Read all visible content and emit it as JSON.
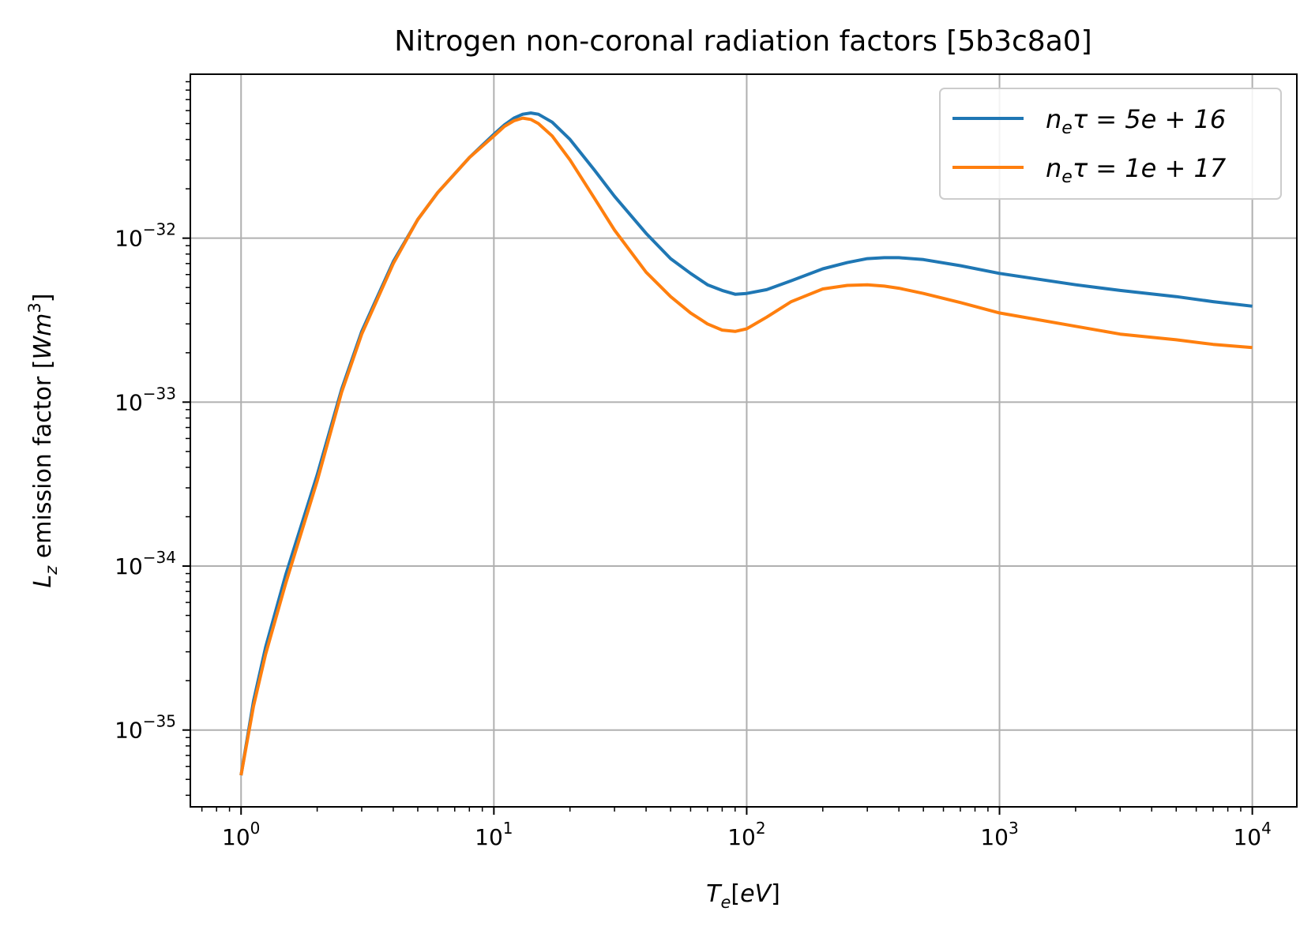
{
  "chart_data": {
    "type": "line",
    "title": "Nitrogen non-coronal radiation factors [5b3c8a0]",
    "xlabel": "T_e[eV]",
    "ylabel": "L_z emission factor [W m^3]",
    "xscale": "log",
    "yscale": "log",
    "xlim": [
      0.63,
      15000
    ],
    "ylim": [
      3.4e-36,
      1e-31
    ],
    "grid": true,
    "legend_position": "top-right",
    "x_ticks": [
      {
        "exp": "0",
        "value": 1
      },
      {
        "exp": "1",
        "value": 10
      },
      {
        "exp": "2",
        "value": 100
      },
      {
        "exp": "3",
        "value": 1000
      },
      {
        "exp": "4",
        "value": 10000
      }
    ],
    "y_ticks": [
      {
        "exp": "−32",
        "value": 1e-32
      },
      {
        "exp": "−33",
        "value": 1e-33
      },
      {
        "exp": "−34",
        "value": 1e-34
      },
      {
        "exp": "−35",
        "value": 1e-35
      }
    ],
    "series": [
      {
        "name": "n_e τ = 5e+16",
        "color": "#1f77b4",
        "x": [
          1.0,
          1.12,
          1.25,
          1.5,
          2.0,
          2.5,
          3.0,
          4.0,
          5.0,
          6.0,
          8.0,
          10.0,
          11.0,
          12.0,
          13.0,
          14.0,
          15.0,
          17.0,
          20.0,
          25.0,
          30.0,
          40.0,
          50.0,
          60.0,
          70.0,
          80.0,
          90.0,
          100.0,
          120.0,
          150.0,
          200.0,
          250.0,
          300.0,
          350.0,
          400.0,
          500.0,
          700.0,
          1000.0,
          2000.0,
          3000.0,
          5000.0,
          7000.0,
          10000.0
        ],
        "y": [
          5.3e-36,
          1.5e-35,
          3.2e-35,
          8.8e-35,
          3.6e-34,
          1.2e-33,
          2.7e-33,
          7.2e-33,
          1.3e-32,
          1.9e-32,
          3.1e-32,
          4.3e-32,
          4.9e-32,
          5.4e-32,
          5.7e-32,
          5.8e-32,
          5.7e-32,
          5.1e-32,
          4e-32,
          2.6e-32,
          1.8e-32,
          1.07e-32,
          7.5e-33,
          6.1e-33,
          5.2e-33,
          4.8e-33,
          4.55e-33,
          4.6e-33,
          4.85e-33,
          5.5e-33,
          6.5e-33,
          7.1e-33,
          7.5e-33,
          7.6e-33,
          7.6e-33,
          7.4e-33,
          6.8e-33,
          6.1e-33,
          5.2e-33,
          4.8e-33,
          4.4e-33,
          4.1e-33,
          3.85e-33
        ]
      },
      {
        "name": "n_e τ = 1e+17",
        "color": "#ff7f0e",
        "x": [
          1.0,
          1.12,
          1.25,
          1.5,
          2.0,
          2.5,
          3.0,
          4.0,
          5.0,
          6.0,
          8.0,
          10.0,
          11.0,
          12.0,
          13.0,
          14.0,
          15.0,
          17.0,
          20.0,
          25.0,
          30.0,
          40.0,
          50.0,
          60.0,
          70.0,
          80.0,
          90.0,
          100.0,
          120.0,
          150.0,
          200.0,
          250.0,
          300.0,
          350.0,
          400.0,
          500.0,
          700.0,
          1000.0,
          2000.0,
          3000.0,
          5000.0,
          7000.0,
          10000.0
        ],
        "y": [
          5.3e-36,
          1.4e-35,
          2.9e-35,
          7.8e-35,
          3.3e-34,
          1.15e-33,
          2.6e-33,
          7e-33,
          1.3e-32,
          1.9e-32,
          3.1e-32,
          4.2e-32,
          4.8e-32,
          5.2e-32,
          5.4e-32,
          5.3e-32,
          5e-32,
          4.2e-32,
          3e-32,
          1.75e-32,
          1.12e-32,
          6.2e-33,
          4.4e-33,
          3.5e-33,
          3e-33,
          2.75e-33,
          2.7e-33,
          2.8e-33,
          3.3e-33,
          4.1e-33,
          4.9e-33,
          5.15e-33,
          5.2e-33,
          5.1e-33,
          4.95e-33,
          4.6e-33,
          4.05e-33,
          3.5e-33,
          2.9e-33,
          2.6e-33,
          2.4e-33,
          2.25e-33,
          2.15e-33
        ]
      }
    ]
  }
}
